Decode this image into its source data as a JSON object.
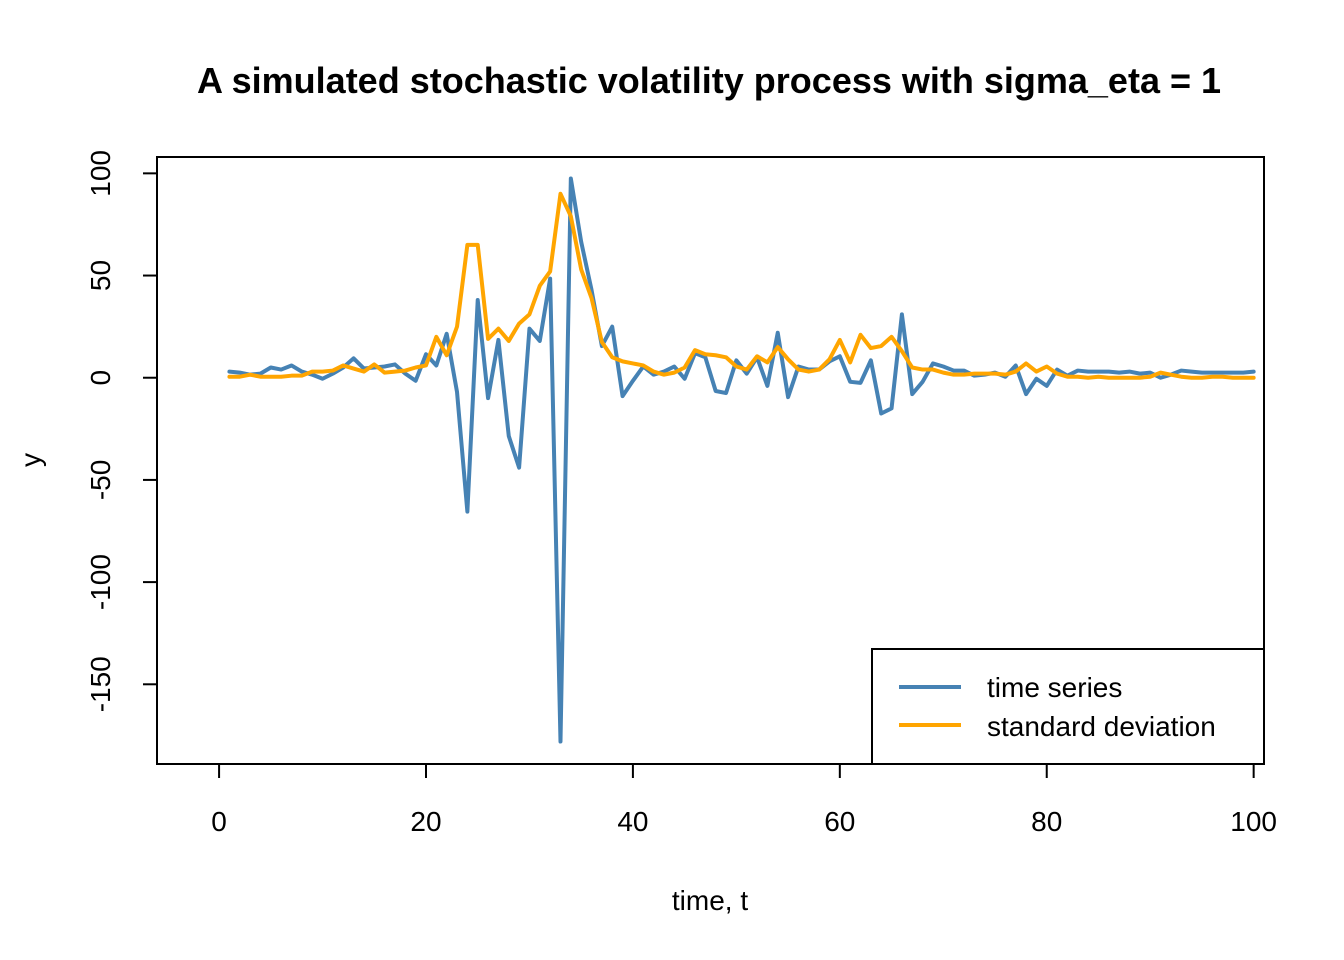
{
  "chart_data": {
    "type": "line",
    "title": "A simulated stochastic volatility process with sigma_eta = 1",
    "xlabel": "time, t",
    "ylabel": "y",
    "xlim": [
      -6,
      101
    ],
    "ylim": [
      -189,
      108
    ],
    "xticks": [
      0,
      20,
      40,
      60,
      80,
      100
    ],
    "yticks": [
      100,
      50,
      0,
      -50,
      -100,
      -150
    ],
    "grid": false,
    "legend": "bottom-right",
    "x": [
      1,
      2,
      3,
      4,
      5,
      6,
      7,
      8,
      9,
      10,
      11,
      12,
      13,
      14,
      15,
      16,
      17,
      18,
      19,
      20,
      21,
      22,
      23,
      24,
      25,
      26,
      27,
      28,
      29,
      30,
      31,
      32,
      33,
      34,
      35,
      36,
      37,
      38,
      39,
      40,
      41,
      42,
      43,
      44,
      45,
      46,
      47,
      48,
      49,
      50,
      51,
      52,
      53,
      54,
      55,
      56,
      57,
      58,
      59,
      60,
      61,
      62,
      63,
      64,
      65,
      66,
      67,
      68,
      69,
      70,
      71,
      72,
      73,
      74,
      75,
      76,
      77,
      78,
      79,
      80,
      81,
      82,
      83,
      84,
      85,
      86,
      87,
      88,
      89,
      90,
      91,
      92,
      93,
      94,
      95,
      96,
      97,
      98,
      99,
      100
    ],
    "series": [
      {
        "name": "time series",
        "color": "#4682B4",
        "values": [
          3,
          2.5,
          1.5,
          2,
          5,
          4,
          6,
          3,
          1.5,
          -0.5,
          2,
          5,
          9.5,
          4.5,
          5,
          5.5,
          6.5,
          2,
          -1.5,
          11.5,
          6,
          21.5,
          -7,
          -65.5,
          38,
          -10,
          18.5,
          -28.5,
          -44,
          24,
          18,
          48.5,
          -178,
          97.5,
          66.5,
          43,
          15.5,
          25,
          -9,
          -1.5,
          5.5,
          1.5,
          3,
          5.5,
          -0.5,
          12,
          10,
          -6.5,
          -7.5,
          8.5,
          2,
          10,
          -4,
          22,
          -9.5,
          5.5,
          4,
          4,
          8,
          10.5,
          -2,
          -2.5,
          8.5,
          -17.5,
          -15,
          31,
          -8,
          -2,
          7,
          5.5,
          3.5,
          3.5,
          1,
          1.5,
          2.5,
          0.5,
          6,
          -8,
          -0.5,
          -4,
          4,
          1,
          3.5,
          3,
          3,
          3,
          2.5,
          3,
          2,
          2.5,
          0,
          1.5,
          3.5,
          3,
          2.5,
          2.5,
          2.5,
          2.5,
          2.5,
          3
        ]
      },
      {
        "name": "standard deviation",
        "color": "#FFA500",
        "values": [
          0.5,
          0.5,
          1.5,
          0.5,
          0.5,
          0.5,
          1,
          1,
          3,
          3,
          3.5,
          6,
          4.5,
          3,
          6.5,
          2.5,
          3,
          3.5,
          5,
          6,
          20,
          11,
          25,
          65,
          65,
          19,
          24,
          18,
          26.5,
          31,
          45,
          52,
          90,
          79,
          53,
          39,
          17.5,
          10,
          8,
          7,
          6,
          3,
          1.5,
          2.5,
          5,
          13.5,
          11.5,
          11,
          10,
          5.5,
          4,
          10.5,
          7.5,
          15,
          9,
          4,
          3,
          4,
          9,
          18.5,
          7.5,
          21,
          14.5,
          15.5,
          20,
          13,
          5,
          4,
          4,
          2.5,
          1.5,
          1.5,
          2,
          2,
          2,
          1.5,
          3,
          7,
          3,
          5.5,
          2,
          0.5,
          0.5,
          0,
          0.5,
          0,
          0,
          0,
          0,
          0.5,
          2.5,
          1.5,
          0.5,
          0,
          0,
          0.5,
          0.5,
          0,
          0,
          0
        ]
      }
    ]
  }
}
